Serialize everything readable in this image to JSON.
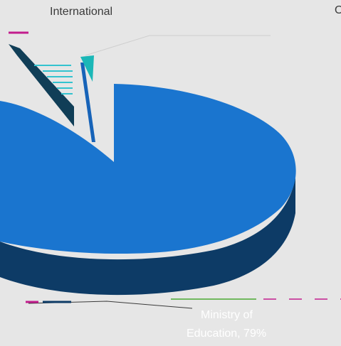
{
  "chart_data": {
    "type": "pie",
    "style": "3d-exploded",
    "colors": {
      "main": "#1a75cf",
      "main_side": "#0d3b66",
      "dark_slice": "#103e57",
      "teal_slice": "#1bb7b7",
      "cyan_stripes": "#33c3cf",
      "magenta_marker": "#c21d8d",
      "green_leader": "#4aa832",
      "background": "#e6e6e6"
    },
    "labels": {
      "top_left": "International",
      "top_right": "O",
      "bottom_line1": "Ministry of",
      "bottom_line2": "Education, 79%"
    },
    "slices": [
      {
        "name": "Ministry of Education",
        "value": 79,
        "color": "#1a75cf"
      },
      {
        "name": "International",
        "value": 8,
        "color": "#103e57"
      },
      {
        "name": "",
        "value": 4,
        "color": "#1bb7b7"
      },
      {
        "name": "",
        "value": 3,
        "color": "#33c3cf"
      },
      {
        "name": "",
        "value": 2,
        "color": "#1763b8"
      },
      {
        "name": "",
        "value": 2,
        "color": "#c21d8d"
      },
      {
        "name": "",
        "value": 2,
        "color": "#4aa832"
      }
    ]
  }
}
